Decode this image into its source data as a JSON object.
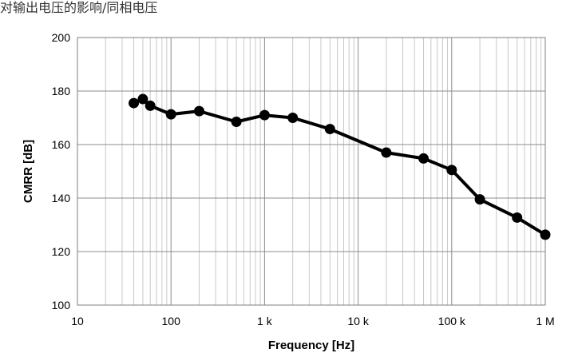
{
  "title": "对输出电压的影响/同相电压",
  "chart_data": {
    "type": "line",
    "title": "对输出电压的影响/同相电压",
    "xlabel": "Frequency [Hz]",
    "ylabel": "CMRR [dB]",
    "xscale": "log",
    "xlim": [
      10,
      1000000
    ],
    "ylim": [
      100,
      200
    ],
    "xticks": [
      10,
      100,
      1000,
      10000,
      100000,
      1000000
    ],
    "xtick_labels": [
      "10",
      "100",
      "1 k",
      "10 k",
      "100 k",
      "1 M"
    ],
    "yticks": [
      100,
      120,
      140,
      160,
      180,
      200
    ],
    "ytick_labels": [
      "100",
      "120",
      "140",
      "160",
      "180",
      "200"
    ],
    "grid": true,
    "legend": "none",
    "series": [
      {
        "color": "#000000",
        "marker": "circle",
        "x": [
          40,
          50,
          60,
          100,
          200,
          500,
          1000,
          2000,
          5000,
          20000,
          50000,
          100000,
          200000,
          500000,
          1000000
        ],
        "y": [
          175.5,
          177,
          174.5,
          171.3,
          172.5,
          168.5,
          171,
          170,
          165.8,
          157,
          154.8,
          150.5,
          139.5,
          132.7,
          126.3
        ]
      }
    ]
  }
}
